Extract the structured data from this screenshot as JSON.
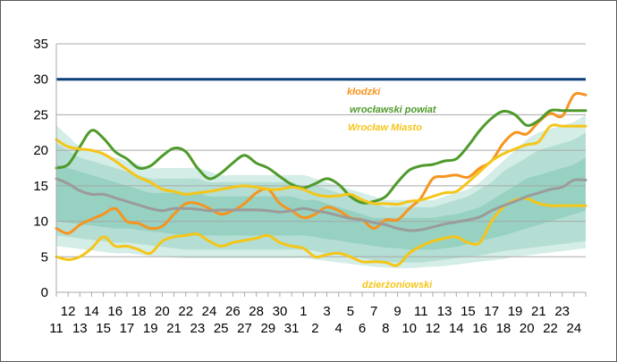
{
  "colors": {
    "klodzki": "#f7941d",
    "wroclawski": "#4e9a2a",
    "wroclaw_miasto": "#f5c518",
    "dzierzoniowski": "#f5c518",
    "median": "#9b9b9b",
    "threshold": "#0d3f7a",
    "band_outer": "#d4ede6",
    "band_mid": "#b4ded3",
    "band_inner": "#96d1c1"
  },
  "chart_data": {
    "type": "line",
    "title": "",
    "xlabel": "",
    "ylabel": "",
    "ylim": [
      0,
      35
    ],
    "y_ticks": [
      0,
      5,
      10,
      15,
      20,
      25,
      30,
      35
    ],
    "x_count": 46,
    "x_labels_top": [
      {
        "i": 1,
        "t": "12"
      },
      {
        "i": 3,
        "t": "14"
      },
      {
        "i": 5,
        "t": "16"
      },
      {
        "i": 7,
        "t": "18"
      },
      {
        "i": 9,
        "t": "20"
      },
      {
        "i": 11,
        "t": "22"
      },
      {
        "i": 13,
        "t": "24"
      },
      {
        "i": 15,
        "t": "26"
      },
      {
        "i": 17,
        "t": "28"
      },
      {
        "i": 19,
        "t": "30"
      },
      {
        "i": 21,
        "t": "1"
      },
      {
        "i": 23,
        "t": "3"
      },
      {
        "i": 25,
        "t": "5"
      },
      {
        "i": 27,
        "t": "7"
      },
      {
        "i": 29,
        "t": "9"
      },
      {
        "i": 31,
        "t": "11"
      },
      {
        "i": 33,
        "t": "13"
      },
      {
        "i": 35,
        "t": "15"
      },
      {
        "i": 37,
        "t": "17"
      },
      {
        "i": 39,
        "t": "19"
      },
      {
        "i": 41,
        "t": "21"
      },
      {
        "i": 43,
        "t": "23"
      }
    ],
    "x_labels_bottom": [
      {
        "i": 0,
        "t": "11"
      },
      {
        "i": 2,
        "t": "13"
      },
      {
        "i": 4,
        "t": "15"
      },
      {
        "i": 6,
        "t": "17"
      },
      {
        "i": 8,
        "t": "19"
      },
      {
        "i": 10,
        "t": "21"
      },
      {
        "i": 12,
        "t": "23"
      },
      {
        "i": 14,
        "t": "25"
      },
      {
        "i": 16,
        "t": "27"
      },
      {
        "i": 18,
        "t": "29"
      },
      {
        "i": 20,
        "t": "31"
      },
      {
        "i": 22,
        "t": "2"
      },
      {
        "i": 24,
        "t": "4"
      },
      {
        "i": 26,
        "t": "6"
      },
      {
        "i": 28,
        "t": "8"
      },
      {
        "i": 30,
        "t": "10"
      },
      {
        "i": 32,
        "t": "12"
      },
      {
        "i": 34,
        "t": "14"
      },
      {
        "i": 36,
        "t": "16"
      },
      {
        "i": 38,
        "t": "18"
      },
      {
        "i": 40,
        "t": "20"
      },
      {
        "i": 42,
        "t": "22"
      },
      {
        "i": 44,
        "t": "24"
      }
    ],
    "threshold": 30,
    "bands": {
      "outer_upper": [
        23.5,
        22,
        20.5,
        20,
        19.5,
        19,
        18.5,
        18,
        17.5,
        17.5,
        17.5,
        17.5,
        17.5,
        17,
        16.5,
        16.5,
        16.5,
        16.5,
        16.5,
        16.5,
        16.5,
        16.5,
        16,
        15.5,
        15,
        14.5,
        14,
        13.5,
        13,
        13,
        13,
        13,
        13,
        13.5,
        14,
        14.5,
        15.5,
        17,
        18.5,
        20,
        21.5,
        22.5,
        23,
        23.5,
        24,
        25
      ],
      "mid_upper": [
        21,
        20,
        19,
        18.5,
        18,
        17.5,
        17,
        16.5,
        16,
        16,
        16,
        16,
        16,
        15.5,
        15.5,
        15.5,
        15.5,
        15.5,
        15.5,
        15.5,
        15.5,
        15,
        15,
        14.5,
        14,
        13.5,
        13,
        12.5,
        12,
        12,
        12,
        12,
        12,
        12.5,
        13,
        13.5,
        14.5,
        15.5,
        17,
        18,
        19,
        20,
        20.5,
        21,
        21.5,
        22.5
      ],
      "inner_upper": [
        18,
        17.5,
        17,
        16.5,
        16,
        15.5,
        15,
        14.5,
        14,
        14,
        14,
        14,
        14,
        13.5,
        13.5,
        13.5,
        13.5,
        13.5,
        13.5,
        13.5,
        13.5,
        13,
        13,
        12.5,
        12,
        11.5,
        11,
        10.5,
        10.5,
        10.5,
        10.5,
        10.5,
        10.5,
        10.8,
        11,
        11.5,
        12,
        13,
        14,
        15,
        16,
        16.5,
        17,
        17.5,
        18,
        19
      ],
      "inner_lower": [
        10,
        9.8,
        9.6,
        9.4,
        9.2,
        9,
        9,
        8.8,
        8.6,
        8.4,
        8.2,
        8,
        8,
        8,
        8,
        8,
        8,
        8,
        8,
        8,
        8,
        8,
        7.8,
        7.5,
        7.3,
        7,
        6.8,
        6.5,
        6.3,
        6.2,
        6,
        6,
        6,
        6.2,
        6.4,
        6.8,
        7.2,
        7.6,
        8,
        8.5,
        9,
        9.5,
        10,
        10.5,
        11,
        11.5
      ],
      "mid_lower": [
        8,
        7.8,
        7.6,
        7.4,
        7.2,
        7,
        7,
        6.8,
        6.6,
        6.4,
        6.2,
        6,
        6,
        6,
        6,
        6,
        6,
        6,
        6,
        6,
        6,
        6,
        5.8,
        5.5,
        5.3,
        5,
        4.8,
        4.5,
        4.3,
        4.2,
        4.2,
        4.2,
        4.4,
        4.6,
        4.8,
        5,
        5.2,
        5.5,
        5.8,
        6,
        6.2,
        6.4,
        6.6,
        6.8,
        7,
        7.2
      ],
      "outer_lower": [
        6.5,
        6.3,
        6.1,
        5.9,
        5.7,
        5.5,
        5.5,
        5.3,
        5.1,
        5,
        4.9,
        4.8,
        4.8,
        4.8,
        4.8,
        4.8,
        4.8,
        4.8,
        4.8,
        4.8,
        4.8,
        4.8,
        4.6,
        4.4,
        4.2,
        4,
        3.8,
        3.6,
        3.5,
        3.4,
        3.4,
        3.5,
        3.6,
        3.7,
        3.9,
        4.1,
        4.3,
        4.5,
        4.7,
        5,
        5.2,
        5.4,
        5.6,
        5.8,
        6,
        6.2
      ]
    },
    "series": [
      {
        "name": "kłodzki",
        "color": "#f7941d",
        "values": [
          9,
          8.3,
          9.5,
          10.3,
          11,
          11.8,
          10,
          9.7,
          9,
          9.3,
          11,
          12.5,
          12.5,
          11.8,
          11,
          11.5,
          12.5,
          14,
          14.5,
          12.5,
          11.5,
          10.5,
          11,
          12,
          11.5,
          10.5,
          10.2,
          9,
          10.2,
          10.2,
          11.8,
          13.3,
          16,
          16.3,
          16.5,
          16.2,
          17.5,
          18.5,
          21,
          22.5,
          22.3,
          24,
          25.2,
          24.8,
          27.8,
          27.8
        ]
      },
      {
        "name": "wrocławski powiat",
        "color": "#4e9a2a",
        "values": [
          17.5,
          18,
          20.5,
          22.8,
          21.7,
          19.8,
          18.8,
          17.5,
          17.8,
          19.2,
          20.3,
          19.8,
          17.5,
          16,
          16.8,
          18.2,
          19.3,
          18.2,
          17.5,
          16.3,
          15.2,
          14.7,
          15.3,
          16,
          15.2,
          13.5,
          12.6,
          12.8,
          13.5,
          15.5,
          17.2,
          17.8,
          18,
          18.5,
          18.8,
          20.6,
          22.8,
          24.5,
          25.5,
          25,
          23.5,
          24.2,
          25.6,
          25.6,
          25.6,
          25.6
        ]
      },
      {
        "name": "Wrocław Miasto",
        "color": "#f5c518",
        "values": [
          21.5,
          20.5,
          20.2,
          20,
          19.5,
          18.5,
          17.3,
          16.2,
          15.5,
          14.5,
          14.2,
          13.8,
          14,
          14.2,
          14.5,
          14.8,
          15,
          14.8,
          14.5,
          14.5,
          14.8,
          14.5,
          13.8,
          13.5,
          13.6,
          13.8,
          13,
          12.5,
          12.5,
          12.4,
          12.8,
          13,
          13.5,
          14,
          14.2,
          15.5,
          17,
          18.5,
          19.5,
          20.2,
          20.8,
          21.2,
          23.4,
          23.4,
          23.4,
          23.4
        ]
      },
      {
        "name": "dzierżoniowski",
        "color": "#f5c518",
        "values": [
          5,
          4.6,
          5,
          6.2,
          7.8,
          6.5,
          6.5,
          6,
          5.5,
          7.2,
          7.8,
          8,
          8.2,
          7.2,
          6.5,
          7,
          7.3,
          7.6,
          8,
          7,
          6.5,
          6.2,
          5,
          5.3,
          5.5,
          5,
          4.3,
          4.3,
          4.2,
          3.8,
          5.5,
          6.5,
          7.2,
          7.6,
          7.8,
          7,
          7,
          10,
          12,
          13,
          13.2,
          12.5,
          12.2,
          12.2,
          12.2,
          12.2
        ]
      },
      {
        "name": "",
        "color": "#9b9b9b",
        "values": [
          16,
          15.3,
          14.3,
          13.8,
          13.8,
          13.3,
          12.8,
          12.3,
          11.8,
          11.5,
          11.8,
          11.8,
          11.7,
          11.5,
          11.6,
          11.6,
          11.6,
          11.6,
          11.5,
          11.3,
          11.5,
          11.8,
          11.5,
          11.2,
          10.8,
          10.4,
          10.2,
          9.8,
          9.5,
          9,
          8.7,
          8.8,
          9.2,
          9.6,
          9.9,
          10.2,
          10.6,
          11.5,
          12.2,
          12.8,
          13.5,
          14,
          14.5,
          14.8,
          15.8,
          15.8
        ]
      }
    ],
    "annotations": {
      "klodzki": "kłodzki",
      "wroclawski": "wrocławski powiat",
      "wroclaw_miasto": "Wrocław Miasto",
      "dzierzoniowski": "dzierżoniowski"
    }
  }
}
